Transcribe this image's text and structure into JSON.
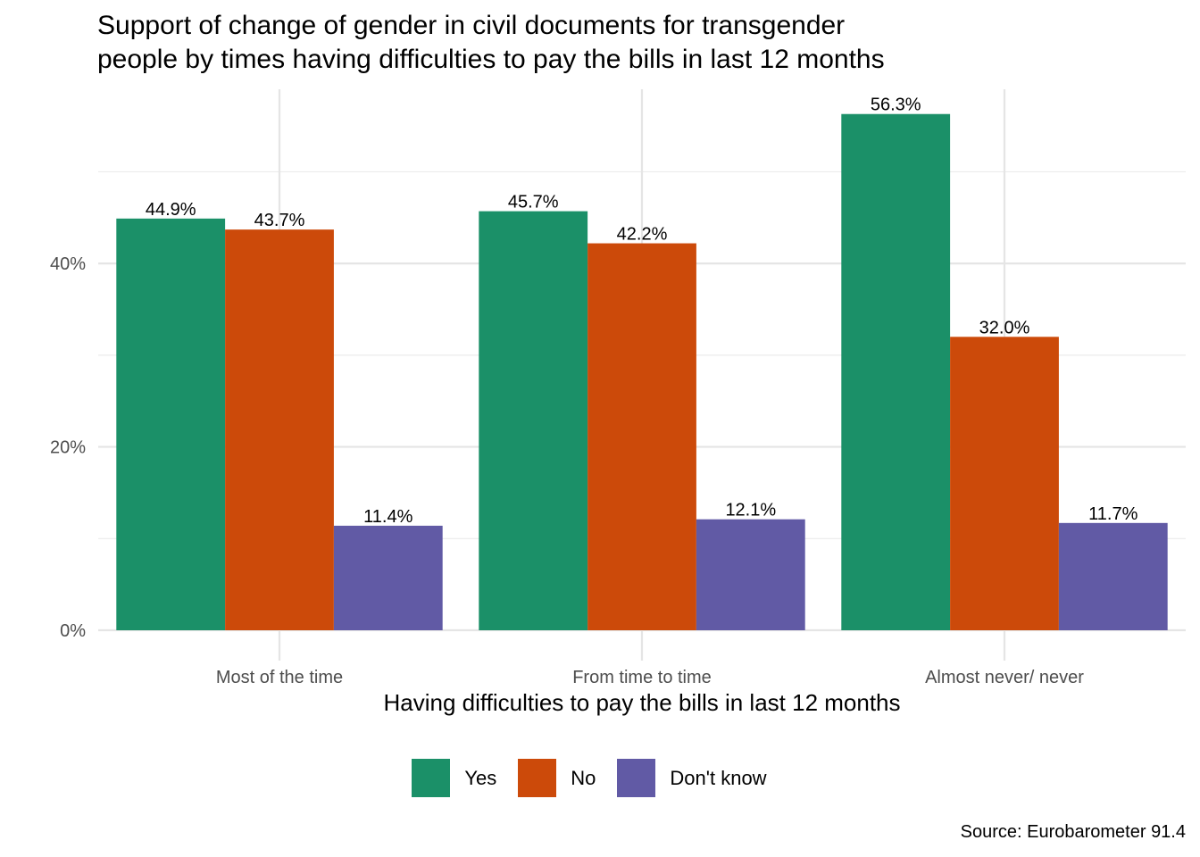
{
  "chart_data": {
    "type": "bar",
    "title": "Support of change of gender in civil documents for transgender people by times having difficulties to pay the bills in last 12 months",
    "title_lines": [
      "Support of change of gender in civil documents for transgender",
      "people by times having difficulties to pay the bills in last 12 months"
    ],
    "xlabel": "Having difficulties to pay the bills in last 12 months",
    "ylabel": "",
    "categories": [
      "Most of the time",
      "From time to time",
      "Almost never/ never"
    ],
    "series": [
      {
        "name": "Yes",
        "color": "#1b9068",
        "values": [
          44.9,
          45.7,
          56.3
        ],
        "labels": [
          "44.9%",
          "45.7%",
          "56.3%"
        ]
      },
      {
        "name": "No",
        "color": "#cc4a0a",
        "values": [
          43.7,
          42.2,
          32.0
        ],
        "labels": [
          "43.7%",
          "42.2%",
          "32.0%"
        ]
      },
      {
        "name": "Don't know",
        "color": "#615aa5",
        "values": [
          11.4,
          12.1,
          11.7
        ],
        "labels": [
          "11.4%",
          "12.1%",
          "11.7%"
        ]
      }
    ],
    "y_ticks": [
      0,
      20,
      40
    ],
    "y_tick_labels": [
      "0%",
      "20%",
      "40%"
    ],
    "ylim": [
      0,
      59
    ],
    "grid": true,
    "legend_position": "bottom",
    "caption": "Source: Eurobarometer 91.4"
  }
}
